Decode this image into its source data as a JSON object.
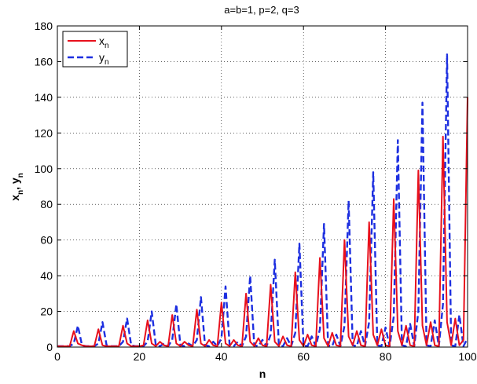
{
  "chart_data": {
    "type": "line",
    "title": "a=b=1, p=2, q=3",
    "xlabel": "n",
    "ylabel": "x",
    "ylabel_sub": "n",
    "ylabel_sep": ", y",
    "ylabel_sub2": "n",
    "xlim": [
      0,
      100
    ],
    "ylim": [
      0,
      180
    ],
    "xticks": [
      0,
      20,
      40,
      60,
      80,
      100
    ],
    "yticks": [
      0,
      20,
      40,
      60,
      80,
      100,
      120,
      140,
      160,
      180
    ],
    "grid": true,
    "legend_placement": "top-left",
    "series": [
      {
        "name": "x",
        "name_sub": "n",
        "color": "#e8101c",
        "style": "solid",
        "points": [
          [
            0,
            0.5
          ],
          [
            1,
            0.5
          ],
          [
            2,
            0.5
          ],
          [
            3,
            0.5
          ],
          [
            4,
            9
          ],
          [
            5,
            2
          ],
          [
            6,
            1
          ],
          [
            7,
            0.5
          ],
          [
            8,
            0.5
          ],
          [
            9,
            0.5
          ],
          [
            10,
            10
          ],
          [
            11,
            1
          ],
          [
            12,
            0.5
          ],
          [
            13,
            0.5
          ],
          [
            14,
            0.5
          ],
          [
            15,
            0.5
          ],
          [
            16,
            12
          ],
          [
            17,
            2
          ],
          [
            18,
            0.5
          ],
          [
            19,
            0.5
          ],
          [
            20,
            0.5
          ],
          [
            21,
            1
          ],
          [
            22,
            15
          ],
          [
            23,
            2
          ],
          [
            24,
            0.5
          ],
          [
            25,
            3
          ],
          [
            26,
            1
          ],
          [
            27,
            0.5
          ],
          [
            28,
            18
          ],
          [
            29,
            2
          ],
          [
            30,
            0.5
          ],
          [
            31,
            3
          ],
          [
            32,
            1
          ],
          [
            33,
            0.5
          ],
          [
            34,
            21
          ],
          [
            35,
            2
          ],
          [
            36,
            0.5
          ],
          [
            37,
            4
          ],
          [
            38,
            1
          ],
          [
            39,
            0.5
          ],
          [
            40,
            25
          ],
          [
            41,
            2
          ],
          [
            42,
            0.5
          ],
          [
            43,
            4
          ],
          [
            44,
            1
          ],
          [
            45,
            0.5
          ],
          [
            46,
            30
          ],
          [
            47,
            3
          ],
          [
            48,
            0.5
          ],
          [
            49,
            5
          ],
          [
            50,
            1
          ],
          [
            51,
            0.5
          ],
          [
            52,
            35
          ],
          [
            53,
            3
          ],
          [
            54,
            0.5
          ],
          [
            55,
            6
          ],
          [
            56,
            1
          ],
          [
            57,
            0.5
          ],
          [
            58,
            42
          ],
          [
            59,
            4
          ],
          [
            60,
            0.5
          ],
          [
            61,
            7
          ],
          [
            62,
            1
          ],
          [
            63,
            0.5
          ],
          [
            64,
            50
          ],
          [
            65,
            5
          ],
          [
            66,
            0.5
          ],
          [
            67,
            8
          ],
          [
            68,
            1
          ],
          [
            69,
            0.5
          ],
          [
            70,
            60
          ],
          [
            71,
            6
          ],
          [
            72,
            1
          ],
          [
            73,
            9
          ],
          [
            74,
            1
          ],
          [
            75,
            0.5
          ],
          [
            76,
            70
          ],
          [
            77,
            7
          ],
          [
            78,
            1
          ],
          [
            79,
            10
          ],
          [
            80,
            1
          ],
          [
            81,
            0.5
          ],
          [
            82,
            83
          ],
          [
            83,
            9
          ],
          [
            84,
            1
          ],
          [
            85,
            12
          ],
          [
            86,
            1
          ],
          [
            87,
            0.5
          ],
          [
            88,
            99
          ],
          [
            89,
            12
          ],
          [
            90,
            1
          ],
          [
            91,
            14
          ],
          [
            92,
            1
          ],
          [
            93,
            0.5
          ],
          [
            94,
            118
          ],
          [
            95,
            14
          ],
          [
            96,
            1
          ],
          [
            97,
            16
          ],
          [
            98,
            1
          ],
          [
            99,
            4
          ],
          [
            100,
            140
          ]
        ]
      },
      {
        "name": "y",
        "name_sub": "n",
        "color": "#1d2fe0",
        "style": "dashed",
        "points": [
          [
            0,
            0.5
          ],
          [
            1,
            0.5
          ],
          [
            2,
            0.5
          ],
          [
            3,
            0.5
          ],
          [
            4,
            2
          ],
          [
            5,
            12
          ],
          [
            6,
            1
          ],
          [
            7,
            0.5
          ],
          [
            8,
            0.5
          ],
          [
            9,
            0.5
          ],
          [
            10,
            2
          ],
          [
            11,
            14
          ],
          [
            12,
            1
          ],
          [
            13,
            0.5
          ],
          [
            14,
            0.5
          ],
          [
            15,
            0.5
          ],
          [
            16,
            3
          ],
          [
            17,
            16
          ],
          [
            18,
            1
          ],
          [
            19,
            0.5
          ],
          [
            20,
            0.5
          ],
          [
            21,
            0.5
          ],
          [
            22,
            3
          ],
          [
            23,
            20
          ],
          [
            24,
            1
          ],
          [
            25,
            0.5
          ],
          [
            26,
            2
          ],
          [
            27,
            0.5
          ],
          [
            28,
            4
          ],
          [
            29,
            24
          ],
          [
            30,
            1
          ],
          [
            31,
            0.5
          ],
          [
            32,
            2
          ],
          [
            33,
            0.5
          ],
          [
            34,
            4
          ],
          [
            35,
            28
          ],
          [
            36,
            1
          ],
          [
            37,
            0.5
          ],
          [
            38,
            3
          ],
          [
            39,
            0.5
          ],
          [
            40,
            5
          ],
          [
            41,
            34
          ],
          [
            42,
            1
          ],
          [
            43,
            0.5
          ],
          [
            44,
            3
          ],
          [
            45,
            0.5
          ],
          [
            46,
            6
          ],
          [
            47,
            40
          ],
          [
            48,
            1
          ],
          [
            49,
            0.5
          ],
          [
            50,
            4
          ],
          [
            51,
            0.5
          ],
          [
            52,
            7
          ],
          [
            53,
            49
          ],
          [
            54,
            1
          ],
          [
            55,
            0.5
          ],
          [
            56,
            5
          ],
          [
            57,
            0.5
          ],
          [
            58,
            8
          ],
          [
            59,
            58
          ],
          [
            60,
            1
          ],
          [
            61,
            0.5
          ],
          [
            62,
            6
          ],
          [
            63,
            0.5
          ],
          [
            64,
            10
          ],
          [
            65,
            69
          ],
          [
            66,
            1
          ],
          [
            67,
            0.5
          ],
          [
            68,
            7
          ],
          [
            69,
            0.5
          ],
          [
            70,
            12
          ],
          [
            71,
            82
          ],
          [
            72,
            1
          ],
          [
            73,
            0.5
          ],
          [
            74,
            9
          ],
          [
            75,
            0.5
          ],
          [
            76,
            14
          ],
          [
            77,
            98
          ],
          [
            78,
            1
          ],
          [
            79,
            0.5
          ],
          [
            80,
            11
          ],
          [
            81,
            0.5
          ],
          [
            82,
            17
          ],
          [
            83,
            116
          ],
          [
            84,
            1
          ],
          [
            85,
            0.5
          ],
          [
            86,
            13
          ],
          [
            87,
            0.5
          ],
          [
            88,
            20
          ],
          [
            89,
            137
          ],
          [
            90,
            1
          ],
          [
            91,
            0.5
          ],
          [
            92,
            15
          ],
          [
            93,
            0.5
          ],
          [
            94,
            24
          ],
          [
            95,
            164
          ],
          [
            96,
            1
          ],
          [
            97,
            0.5
          ],
          [
            98,
            18
          ],
          [
            99,
            0.5
          ],
          [
            100,
            5
          ]
        ]
      }
    ]
  }
}
